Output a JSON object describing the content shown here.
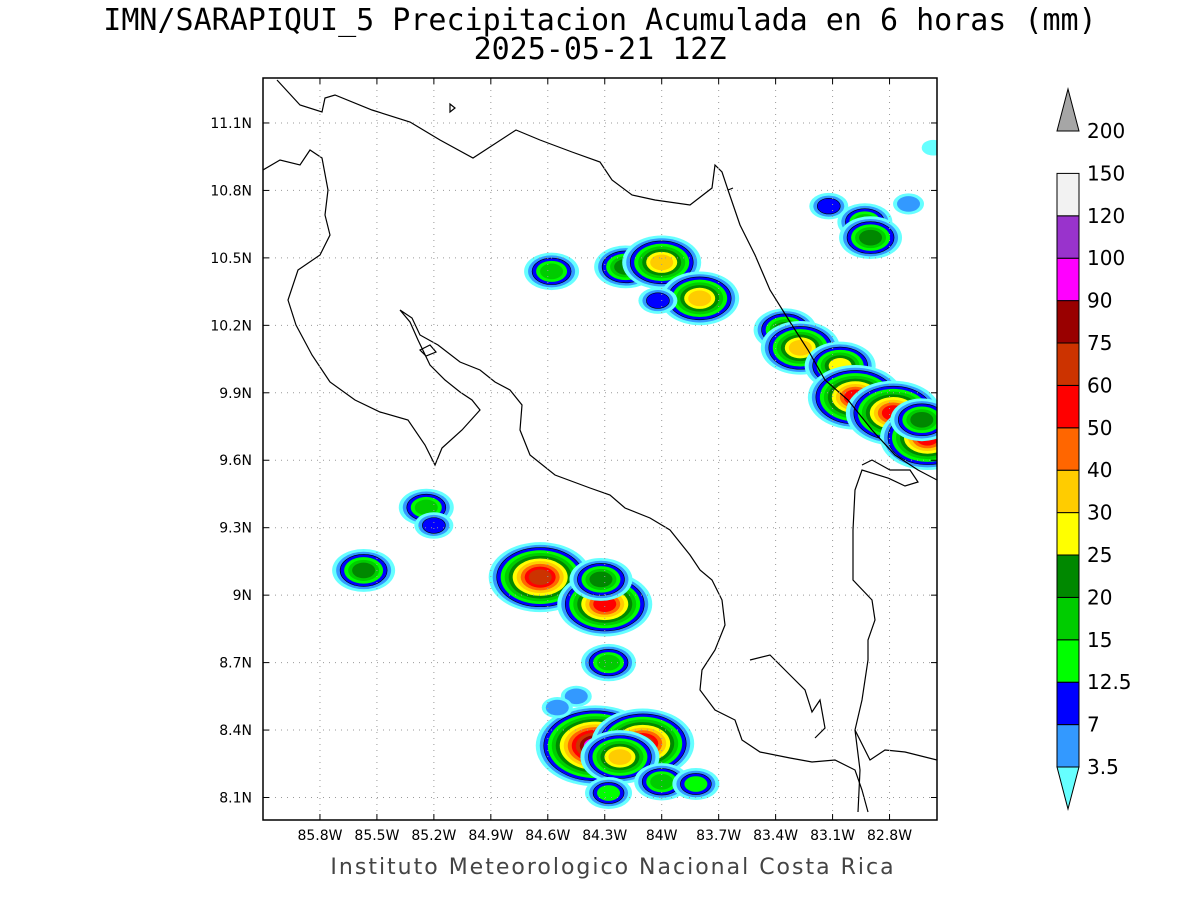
{
  "title": {
    "line1": "IMN/SARAPIQUI_5 Precipitacion Acumulada en 6 horas (mm)",
    "line2": "2025-05-21 12Z"
  },
  "footer": "Instituto Meteorologico Nacional Costa Rica",
  "map": {
    "lon_range": [
      -86.1,
      -82.55
    ],
    "lat_range": [
      8.0,
      11.3
    ],
    "lon_ticks": [
      {
        "value": -85.8,
        "label": "85.8W"
      },
      {
        "value": -85.5,
        "label": "85.5W"
      },
      {
        "value": -85.2,
        "label": "85.2W"
      },
      {
        "value": -84.9,
        "label": "84.9W"
      },
      {
        "value": -84.6,
        "label": "84.6W"
      },
      {
        "value": -84.3,
        "label": "84.3W"
      },
      {
        "value": -84.0,
        "label": "84W"
      },
      {
        "value": -83.7,
        "label": "83.7W"
      },
      {
        "value": -83.4,
        "label": "83.4W"
      },
      {
        "value": -83.1,
        "label": "83.1W"
      },
      {
        "value": -82.8,
        "label": "82.8W"
      }
    ],
    "lat_ticks": [
      {
        "value": 8.1,
        "label": "8.1N"
      },
      {
        "value": 8.4,
        "label": "8.4N"
      },
      {
        "value": 8.7,
        "label": "8.7N"
      },
      {
        "value": 9.0,
        "label": "9N"
      },
      {
        "value": 9.3,
        "label": "9.3N"
      },
      {
        "value": 9.6,
        "label": "9.6N"
      },
      {
        "value": 9.9,
        "label": "9.9N"
      },
      {
        "value": 10.2,
        "label": "10.2N"
      },
      {
        "value": 10.5,
        "label": "10.5N"
      },
      {
        "value": 10.8,
        "label": "10.8N"
      },
      {
        "value": 11.1,
        "label": "11.1N"
      }
    ],
    "grid": true
  },
  "colorbar": {
    "levels": [
      {
        "label": "3.5",
        "color": "#66ffff"
      },
      {
        "label": "7",
        "color": "#3399ff"
      },
      {
        "label": "12.5",
        "color": "#0000ff"
      },
      {
        "label": "15",
        "color": "#00ff00"
      },
      {
        "label": "20",
        "color": "#00cc00"
      },
      {
        "label": "25",
        "color": "#008800"
      },
      {
        "label": "30",
        "color": "#ffff00"
      },
      {
        "label": "40",
        "color": "#ffcc00"
      },
      {
        "label": "50",
        "color": "#ff6600"
      },
      {
        "label": "60",
        "color": "#ff0000"
      },
      {
        "label": "75",
        "color": "#cc3300"
      },
      {
        "label": "90",
        "color": "#990000"
      },
      {
        "label": "100",
        "color": "#ff00ff"
      },
      {
        "label": "120",
        "color": "#9933cc"
      },
      {
        "label": "150",
        "color": "#f2f2f2"
      },
      {
        "label": "200",
        "color": "#a6a6a6"
      }
    ]
  },
  "precip_cells": [
    {
      "lon": -84.58,
      "lat": 10.44,
      "peak": 4
    },
    {
      "lon": -84.19,
      "lat": 10.46,
      "peak": 5
    },
    {
      "lon": -84.0,
      "lat": 10.48,
      "peak": 7
    },
    {
      "lon": -83.8,
      "lat": 10.32,
      "peak": 7
    },
    {
      "lon": -84.02,
      "lat": 10.31,
      "peak": 2
    },
    {
      "lon": -83.35,
      "lat": 10.18,
      "peak": 5
    },
    {
      "lon": -83.27,
      "lat": 10.1,
      "peak": 7
    },
    {
      "lon": -83.06,
      "lat": 10.02,
      "peak": 6
    },
    {
      "lon": -82.98,
      "lat": 9.88,
      "peak": 9
    },
    {
      "lon": -82.78,
      "lat": 9.81,
      "peak": 9
    },
    {
      "lon": -82.6,
      "lat": 9.7,
      "peak": 9
    },
    {
      "lon": -82.63,
      "lat": 9.78,
      "peak": 5
    },
    {
      "lon": -83.12,
      "lat": 10.73,
      "peak": 2
    },
    {
      "lon": -82.93,
      "lat": 10.66,
      "peak": 4
    },
    {
      "lon": -82.9,
      "lat": 10.59,
      "peak": 5
    },
    {
      "lon": -82.7,
      "lat": 10.74,
      "peak": 1
    },
    {
      "lon": -82.57,
      "lat": 10.99,
      "peak": 0
    },
    {
      "lon": -84.64,
      "lat": 9.08,
      "peak": 10
    },
    {
      "lon": -84.3,
      "lat": 8.96,
      "peak": 9
    },
    {
      "lon": -84.32,
      "lat": 9.07,
      "peak": 5
    },
    {
      "lon": -84.28,
      "lat": 8.7,
      "peak": 4
    },
    {
      "lon": -85.57,
      "lat": 9.11,
      "peak": 5
    },
    {
      "lon": -85.24,
      "lat": 9.39,
      "peak": 4
    },
    {
      "lon": -85.2,
      "lat": 9.31,
      "peak": 2
    },
    {
      "lon": -84.35,
      "lat": 8.33,
      "peak": 12
    },
    {
      "lon": -84.1,
      "lat": 8.34,
      "peak": 10
    },
    {
      "lon": -84.22,
      "lat": 8.28,
      "peak": 7
    },
    {
      "lon": -84.0,
      "lat": 8.17,
      "peak": 4
    },
    {
      "lon": -83.82,
      "lat": 8.16,
      "peak": 3
    },
    {
      "lon": -84.28,
      "lat": 8.12,
      "peak": 3
    },
    {
      "lon": -84.45,
      "lat": 8.55,
      "peak": 1
    },
    {
      "lon": -84.55,
      "lat": 8.5,
      "peak": 1
    }
  ]
}
